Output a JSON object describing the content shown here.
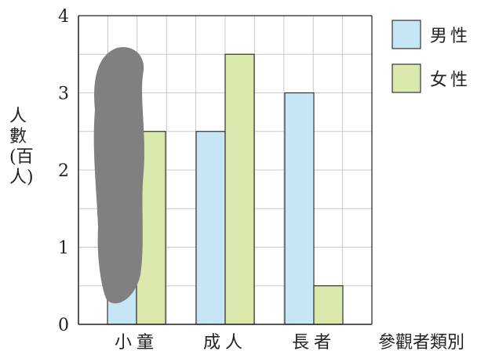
{
  "chart_data": {
    "type": "bar",
    "categories": [
      "小童",
      "成人",
      "長者"
    ],
    "series": [
      {
        "name": "男性",
        "values": [
          1,
          2.5,
          3
        ],
        "color": "#c6e5f5"
      },
      {
        "name": "女性",
        "values": [
          2.5,
          3.5,
          0.5
        ],
        "color": "#dae9ab"
      }
    ],
    "ylim": [
      0,
      4
    ],
    "yticks": [
      "0",
      "1",
      "2",
      "3",
      "4"
    ],
    "ylabel": "人數(百人)",
    "xlabel": "參觀者類別",
    "grid": true,
    "legend_position": "top-right",
    "scribble_color": "#808080"
  }
}
